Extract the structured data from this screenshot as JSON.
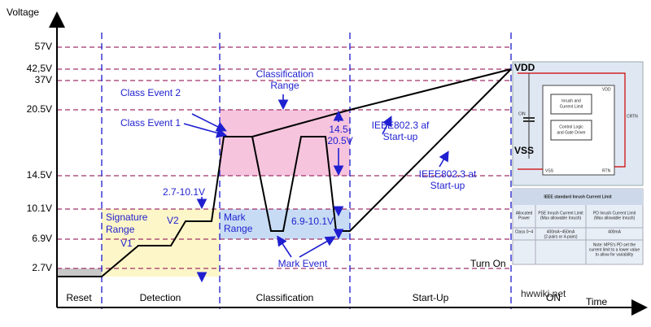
{
  "axes": {
    "y_title": "Voltage",
    "x_title": "Time"
  },
  "y_levels": [
    "57V",
    "42,5V",
    "37V",
    "20.5V",
    "14.5V",
    "10.1V",
    "6.9V",
    "2.7V"
  ],
  "phases": [
    "Reset",
    "Detection",
    "Classification",
    "Start-Up",
    "ON"
  ],
  "annotations": {
    "signature_range": [
      "Signature",
      "Range"
    ],
    "v1": "V1",
    "v2": "V2",
    "detection_range": "2.7-10.1V",
    "class_event_2": "Class Event 2",
    "class_event_1": "Class Event 1",
    "classification_range": [
      "Classification",
      "Range"
    ],
    "class_range_value": [
      "14.5-",
      "20.5V"
    ],
    "af_startup": [
      "IEEE802.3 af",
      "Start-up"
    ],
    "at_startup": [
      "IEEE802.3 at",
      "Start-up"
    ],
    "mark_range": [
      "Mark",
      "Range"
    ],
    "mark_range_value": "6.9-10.1V",
    "mark_event": "Mark Event",
    "turn_on": "Turn On",
    "watermark": "hwwiki.net"
  },
  "inset": {
    "vdd": "VDD",
    "vss": "VSS",
    "cin": "CIN",
    "crtn": "CRTN",
    "inrush_block": [
      "Inrush and",
      "Current Limit"
    ],
    "control_block": [
      "Control Logic",
      "and Gate Driver"
    ],
    "pin_vdd": "VDD",
    "pin_vss": "VSS",
    "pin_rtn": "RTN",
    "table_title": "IEEE standard Inrush Current Limit",
    "table": {
      "header": [
        [
          "Allocated",
          "Power"
        ],
        [
          "PSE Inrush Current Limit",
          "(Max allowable Inrush)"
        ],
        [
          "PD Inrush Current Limit",
          "(Max allowable Inrush)"
        ]
      ],
      "rows": [
        [
          [
            "Class 0~4"
          ],
          [
            "400mA~450mA",
            "(2-pairs or 4-pairs)"
          ],
          [
            "400mA"
          ]
        ],
        [
          [],
          [],
          [
            "Note: MPS's PD set the",
            "current limit to a lower value",
            "to allow for variability"
          ]
        ]
      ]
    }
  }
}
